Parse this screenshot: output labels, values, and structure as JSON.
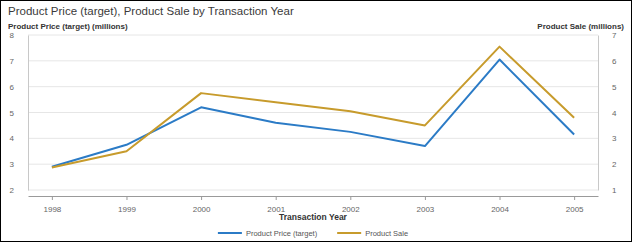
{
  "chart_data": {
    "type": "line",
    "title": "Product Price (target), Product Sale by Transaction Year",
    "x_label": "Transaction Year",
    "y_label": "Product Price (target) (millions)",
    "y2_label": "Product Sale (millions)",
    "categories": [
      "1998",
      "1999",
      "2000",
      "2001",
      "2002",
      "2003",
      "2004",
      "2005"
    ],
    "series": [
      {
        "name": "Product Price (target)",
        "color": "#2b7bc6",
        "axis": "y",
        "values": [
          2.9,
          3.75,
          5.2,
          4.6,
          4.25,
          3.7,
          7.05,
          4.15
        ]
      },
      {
        "name": "Product Sale",
        "color": "#c79b2c",
        "axis": "y2",
        "values": [
          1.87,
          2.5,
          4.75,
          4.4,
          4.05,
          3.5,
          6.55,
          3.8
        ]
      }
    ],
    "ylim": [
      2,
      8
    ],
    "yticks": [
      2,
      3,
      4,
      5,
      6,
      7,
      8
    ],
    "y2lim": [
      1,
      7
    ],
    "y2ticks": [
      1,
      2,
      3,
      4,
      5,
      6,
      7
    ],
    "grid": true,
    "legend": "bottom"
  }
}
